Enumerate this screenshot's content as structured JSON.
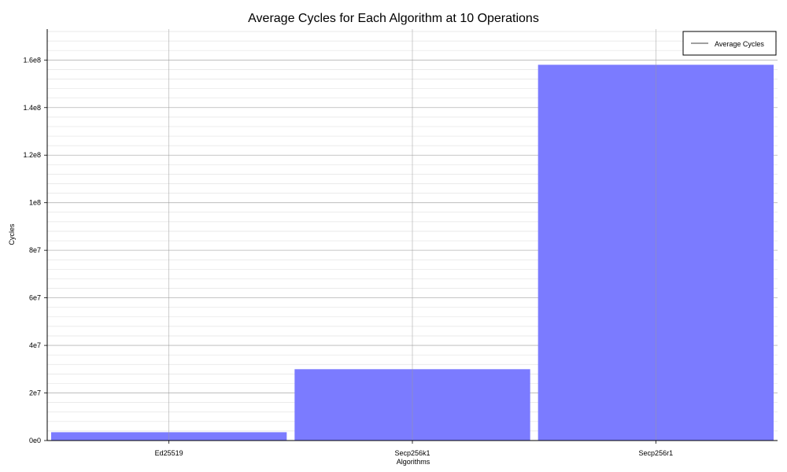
{
  "chart_data": {
    "type": "bar",
    "title": "Average Cycles for Each Algorithm at 10 Operations",
    "xlabel": "Algorithms",
    "ylabel": "Cycles",
    "categories": [
      "Ed25519",
      "Secp256k1",
      "Secp256r1"
    ],
    "series": [
      {
        "name": "Average Cycles",
        "values": [
          3500000,
          30000000,
          158000000
        ]
      }
    ],
    "ylim": [
      0,
      173000000
    ],
    "yticks": [
      0,
      20000000,
      40000000,
      60000000,
      80000000,
      100000000,
      120000000,
      140000000,
      160000000
    ],
    "ytick_labels": [
      "0e0",
      "2e7",
      "4e7",
      "6e7",
      "8e7",
      "1e8",
      "1.2e8",
      "1.4e8",
      "1.6e8"
    ],
    "grid": true,
    "legend_position": "top-right",
    "bar_color": "#7b7bff"
  }
}
